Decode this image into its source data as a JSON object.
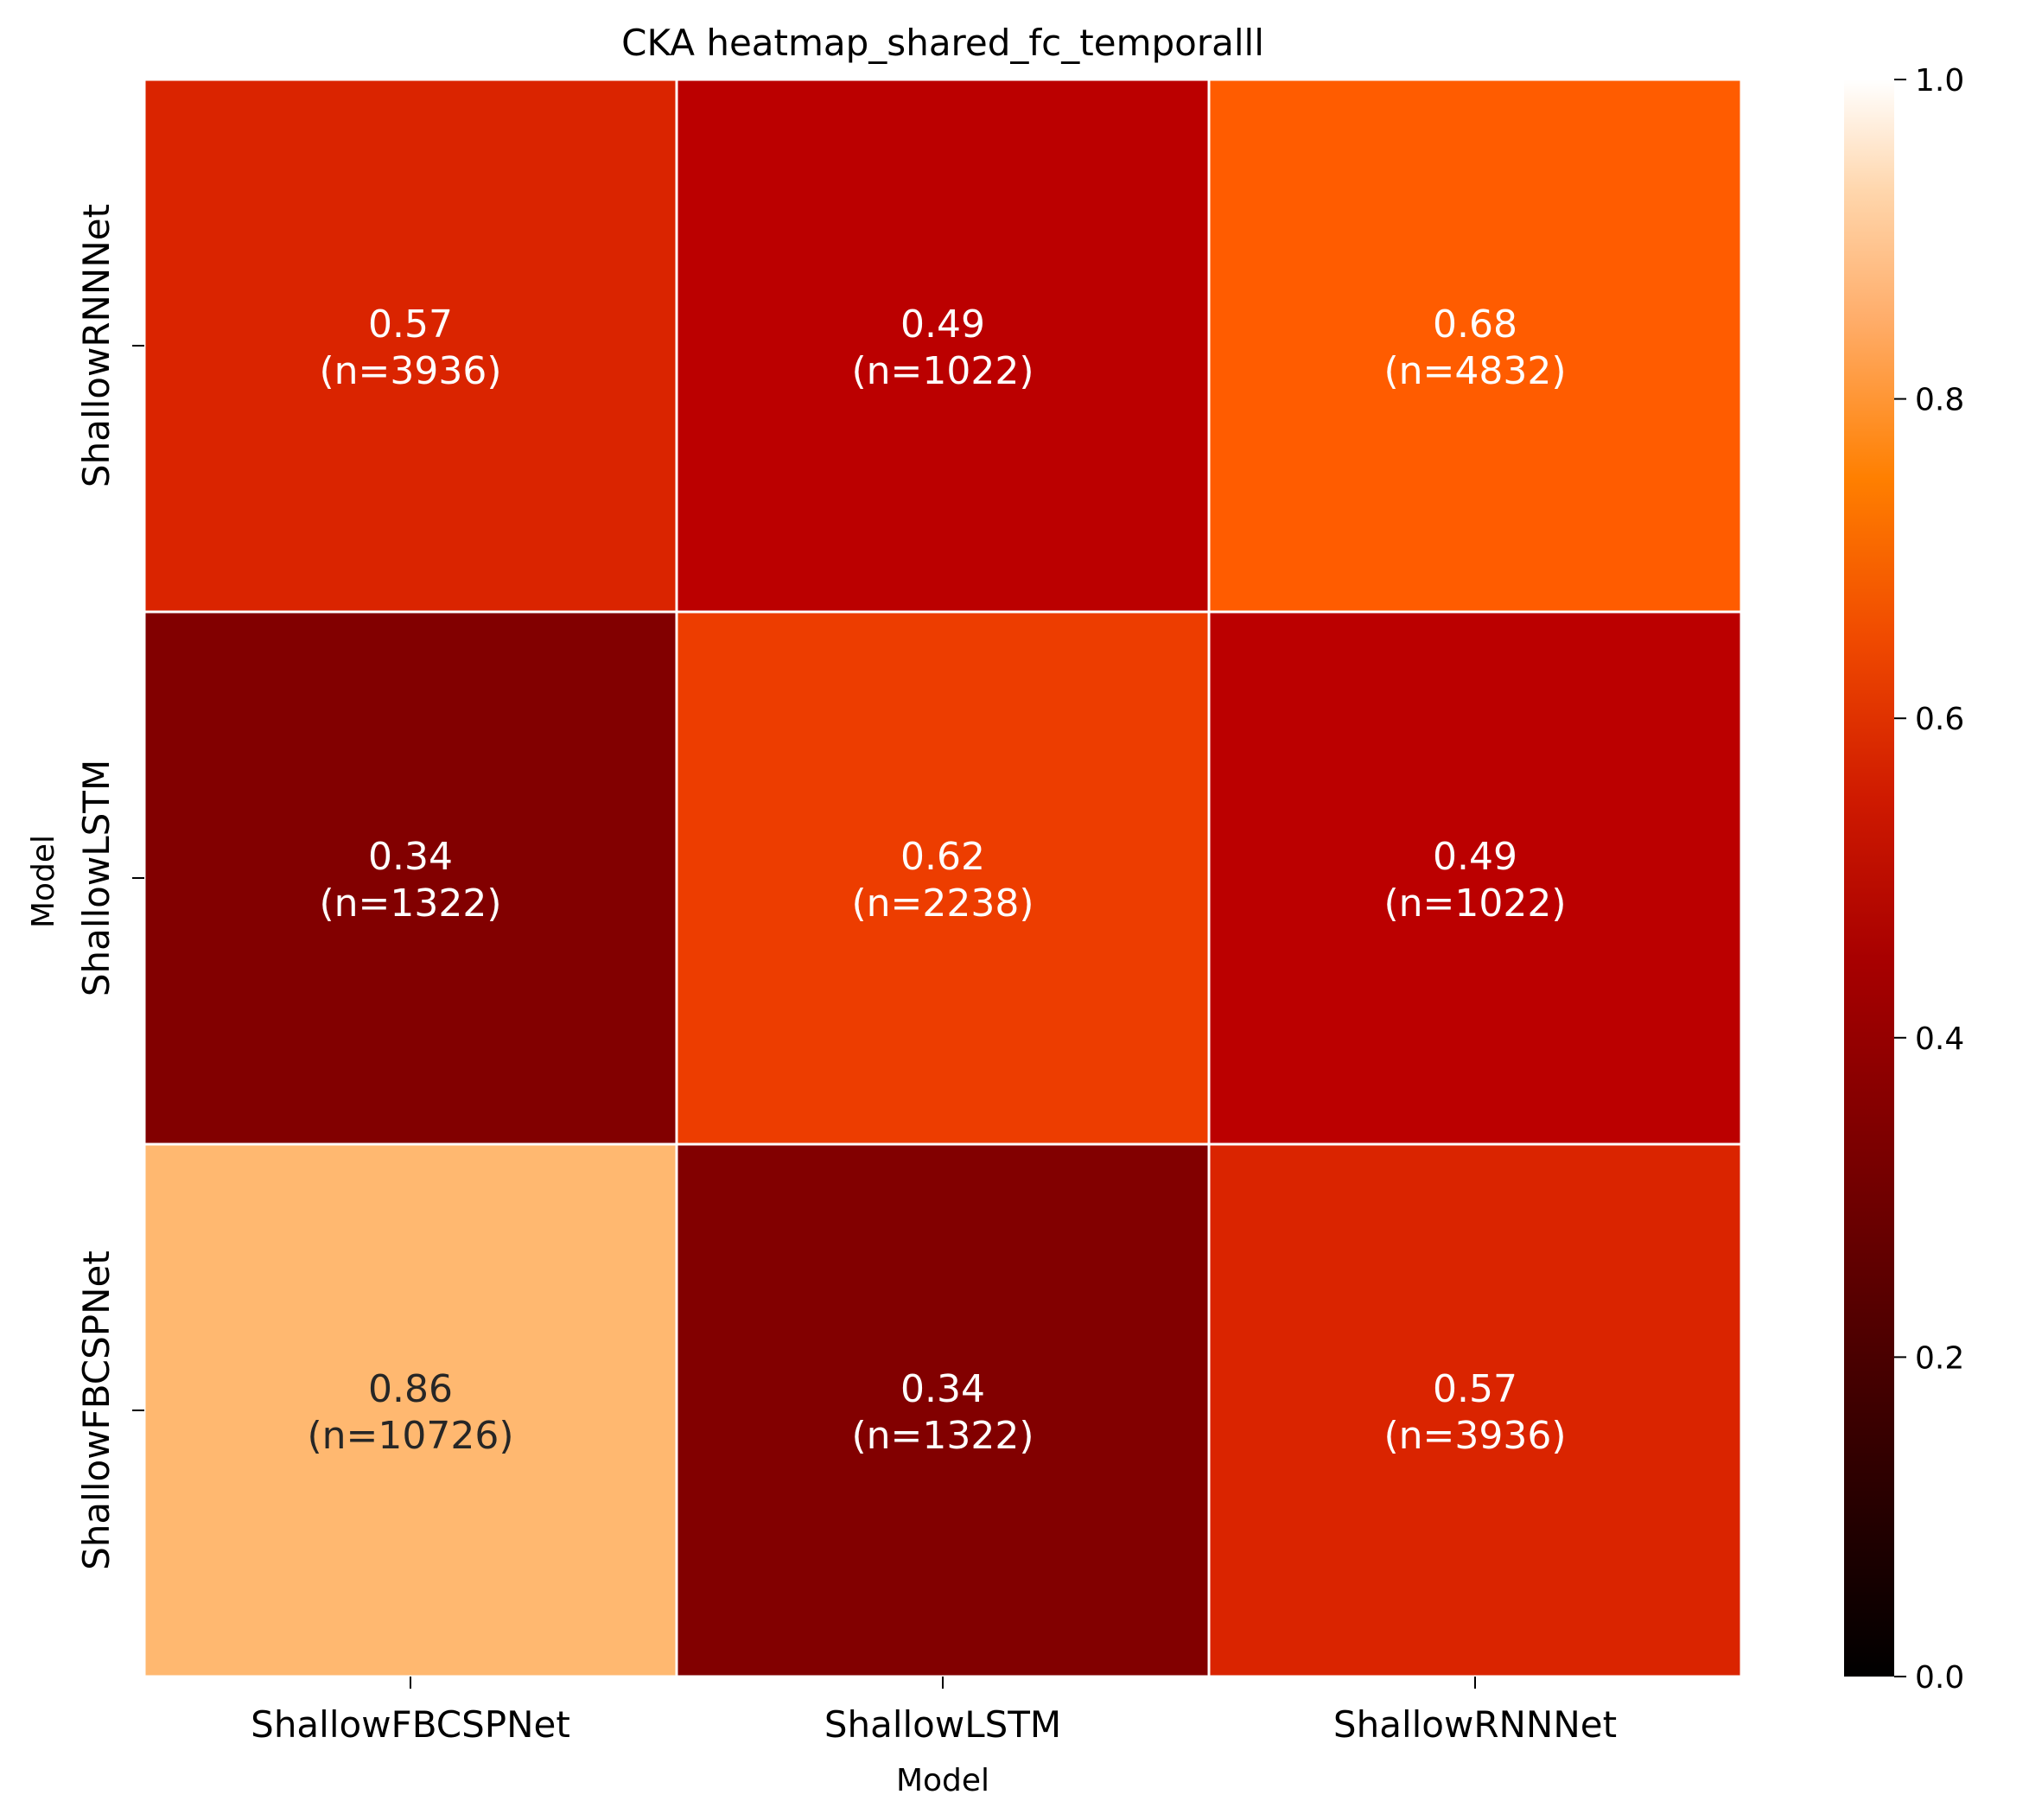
{
  "chart_data": {
    "type": "heatmap",
    "title": "CKA heatmap_shared_fc_temporalll",
    "xlabel": "Model",
    "ylabel": "Model",
    "x_categories": [
      "ShallowFBCSPNet",
      "ShallowLSTM",
      "ShallowRNNNet"
    ],
    "y_categories": [
      "ShallowRNNNet",
      "ShallowLSTM",
      "ShallowFBCSPNet"
    ],
    "values": [
      [
        0.57,
        0.49,
        0.68
      ],
      [
        0.34,
        0.62,
        0.49
      ],
      [
        0.86,
        0.34,
        0.57
      ]
    ],
    "counts": [
      [
        3936,
        1022,
        4832
      ],
      [
        1322,
        2238,
        1022
      ],
      [
        10726,
        1322,
        3936
      ]
    ],
    "cell_labels": [
      [
        "0.57",
        "0.49",
        "0.68"
      ],
      [
        "0.34",
        "0.62",
        "0.49"
      ],
      [
        "0.86",
        "0.34",
        "0.57"
      ]
    ],
    "cell_count_labels": [
      [
        "(n=3936)",
        "(n=1022)",
        "(n=4832)"
      ],
      [
        "(n=1322)",
        "(n=2238)",
        "(n=1022)"
      ],
      [
        "(n=10726)",
        "(n=1322)",
        "(n=3936)"
      ]
    ],
    "colormap": "gist_heat",
    "colorbar": {
      "range": [
        0.0,
        1.0
      ],
      "ticks": [
        0.0,
        0.2,
        0.4,
        0.6,
        0.8,
        1.0
      ],
      "tick_labels": [
        "0.0",
        "0.2",
        "0.4",
        "0.6",
        "0.8",
        "1.0"
      ]
    },
    "colors": {
      "cell_text_dark": "#262626",
      "cell_text_light": "#ffffff",
      "cell_border": "#ffffff"
    }
  }
}
